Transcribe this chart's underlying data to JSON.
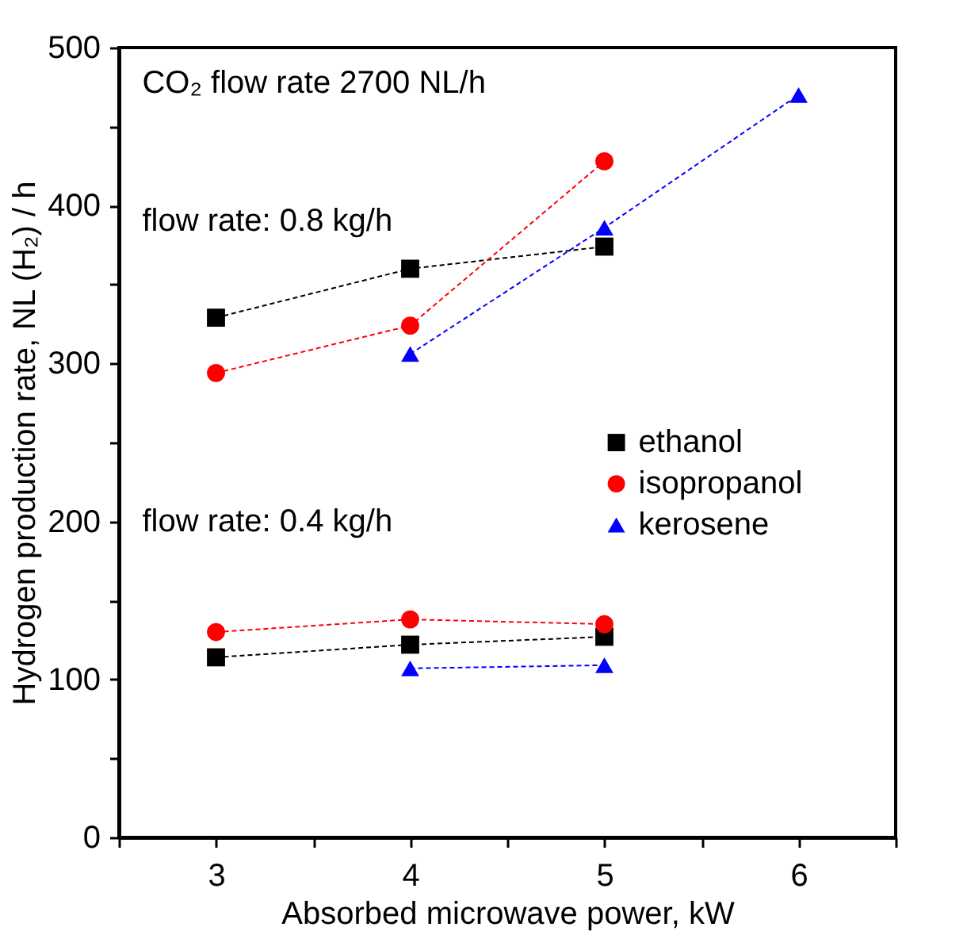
{
  "chart_data": {
    "type": "line",
    "xlabel": "Absorbed microwave power, kW",
    "ylabel": "Hydrogen production rate, NL (H₂) / h",
    "annotations": [
      "CO₂ flow rate 2700 NL/h",
      "flow rate: 0.8 kg/h",
      "flow rate: 0.4 kg/h"
    ],
    "xlim": [
      2.5,
      6.5
    ],
    "xticks": [
      {
        "value": 2.5,
        "label": null
      },
      3,
      {
        "value": 3.5,
        "label": null
      },
      4,
      {
        "value": 4.5,
        "label": null
      },
      5,
      {
        "value": 5.5,
        "label": null
      },
      6,
      {
        "value": 6.5,
        "label": null
      }
    ],
    "ylim": [
      0,
      500
    ],
    "yticks": [
      0,
      {
        "value": 50,
        "label": null
      },
      100,
      {
        "value": 150,
        "label": null
      },
      200,
      {
        "value": 250,
        "label": null
      },
      300,
      {
        "value": 350,
        "label": null
      },
      400,
      {
        "value": 450,
        "label": null
      },
      500
    ],
    "grid": false,
    "legend": "right",
    "line_style": "dashed",
    "series": [
      {
        "name": "ethanol",
        "color": "#000000",
        "marker": "square",
        "x": [
          3,
          4,
          5
        ],
        "values": [
          329,
          360,
          374
        ]
      },
      {
        "name": "isopropanol",
        "color": "#ff0000",
        "marker": "circle",
        "x": [
          3,
          4,
          5
        ],
        "values": [
          294,
          324,
          428
        ]
      },
      {
        "name": "kerosene",
        "color": "#0000ff",
        "marker": "triangle",
        "x": [
          4,
          5,
          6
        ],
        "values": [
          306,
          386,
          470
        ]
      },
      {
        "color": "#000000",
        "marker": "square",
        "x": [
          3,
          4,
          5
        ],
        "values": [
          114,
          122,
          127
        ]
      },
      {
        "color": "#ff0000",
        "marker": "circle",
        "x": [
          3,
          4,
          5
        ],
        "values": [
          130,
          138,
          135
        ]
      },
      {
        "color": "#0000ff",
        "marker": "triangle",
        "x": [
          4,
          5
        ],
        "values": [
          107,
          109
        ]
      }
    ]
  }
}
